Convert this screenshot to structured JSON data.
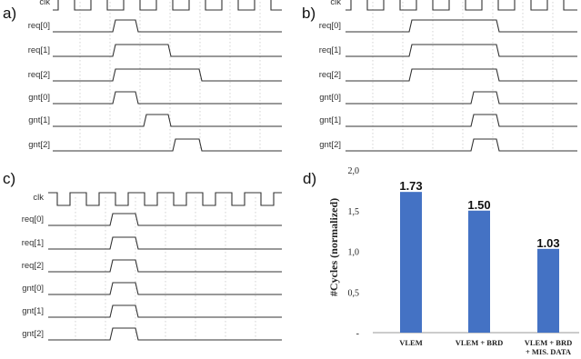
{
  "panels": [
    {
      "label": "a)",
      "signals": [
        "clk",
        "req[0]",
        "req[1]",
        "req[2]",
        "gnt[0]",
        "gnt[1]",
        "gnt[2]"
      ]
    },
    {
      "label": "b)",
      "signals": [
        "clk",
        "req[0]",
        "req[1]",
        "req[2]",
        "gnt[0]",
        "gnt[1]",
        "gnt[2]"
      ]
    },
    {
      "label": "c)",
      "signals": [
        "clk",
        "req[0]",
        "req[1]",
        "req[2]",
        "gnt[0]",
        "gnt[1]",
        "gnt[2]"
      ]
    }
  ],
  "chart_label": "d)",
  "chart_data": {
    "type": "bar",
    "categories": [
      "VLEM",
      "VLEM + BRD",
      "VLEM + BRD\n+ MIS. DATA"
    ],
    "values": [
      1.73,
      1.5,
      1.03
    ],
    "data_labels": [
      "1.73",
      "1.50",
      "1.03"
    ],
    "ylabel": "#Cycles (normalized)",
    "ylim": [
      0,
      2.0
    ],
    "yticks": [
      "-",
      "0,5",
      "1,0",
      "1,5",
      "2,0"
    ],
    "bar_color": "#4472C4",
    "grid": false
  }
}
